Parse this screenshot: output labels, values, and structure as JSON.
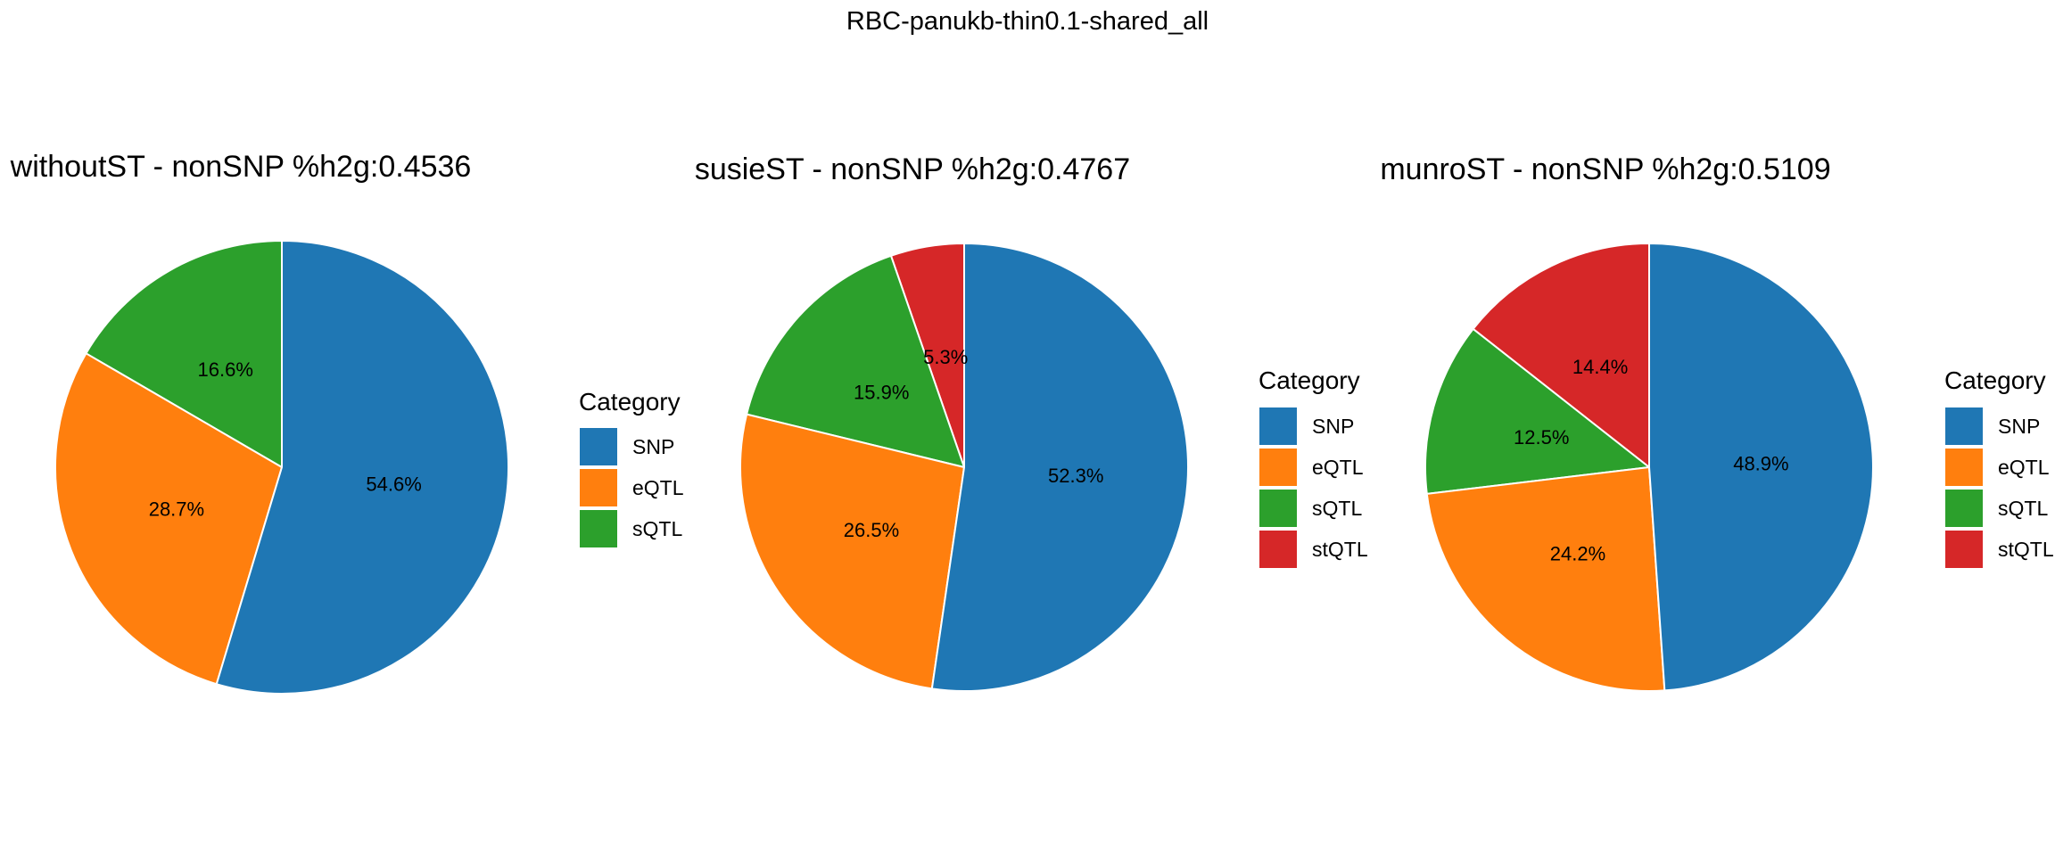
{
  "figure": {
    "title": "RBC-panukb-thin0.1-shared_all"
  },
  "colors": {
    "SNP": "#1f77b4",
    "eQTL": "#ff7f0e",
    "sQTL": "#2ca02c",
    "stQTL": "#d62728"
  },
  "chart_data": [
    {
      "type": "pie",
      "title": "withoutST - nonSNP %h2g:0.4536",
      "legend_title": "Category",
      "legend_position": "right",
      "slices": [
        {
          "category": "SNP",
          "value": 54.6,
          "label": "54.6%"
        },
        {
          "category": "eQTL",
          "value": 28.7,
          "label": "28.7%"
        },
        {
          "category": "sQTL",
          "value": 16.6,
          "label": "16.6%"
        }
      ]
    },
    {
      "type": "pie",
      "title": "susieST - nonSNP %h2g:0.4767",
      "legend_title": "Category",
      "legend_position": "right",
      "slices": [
        {
          "category": "SNP",
          "value": 52.3,
          "label": "52.3%"
        },
        {
          "category": "eQTL",
          "value": 26.5,
          "label": "26.5%"
        },
        {
          "category": "sQTL",
          "value": 15.9,
          "label": "15.9%"
        },
        {
          "category": "stQTL",
          "value": 5.3,
          "label": "5.3%"
        }
      ]
    },
    {
      "type": "pie",
      "title": "munroST - nonSNP %h2g:0.5109",
      "legend_title": "Category",
      "legend_position": "right",
      "slices": [
        {
          "category": "SNP",
          "value": 48.9,
          "label": "48.9%"
        },
        {
          "category": "eQTL",
          "value": 24.2,
          "label": "24.2%"
        },
        {
          "category": "sQTL",
          "value": 12.5,
          "label": "12.5%"
        },
        {
          "category": "stQTL",
          "value": 14.4,
          "label": "14.4%"
        }
      ]
    }
  ]
}
